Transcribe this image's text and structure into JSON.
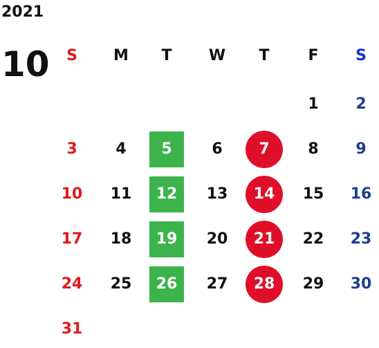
{
  "year": "2021",
  "month": "10",
  "colors": {
    "sunday": "#e0191d",
    "saturday": "#1f3e8c",
    "weekday": "#111111",
    "green_highlight": "#3cb44b",
    "red_highlight": "#e00f29",
    "highlight_text": "#ffffff"
  },
  "weekdays": [
    "S",
    "M",
    "T",
    "W",
    "T",
    "F",
    "S"
  ],
  "weeks": [
    [
      "",
      "",
      "",
      "",
      "",
      "1",
      "2"
    ],
    [
      "3",
      "4",
      "5",
      "6",
      "7",
      "8",
      "9"
    ],
    [
      "10",
      "11",
      "12",
      "13",
      "14",
      "15",
      "16"
    ],
    [
      "17",
      "18",
      "19",
      "20",
      "21",
      "22",
      "23"
    ],
    [
      "24",
      "25",
      "26",
      "27",
      "28",
      "29",
      "30"
    ],
    [
      "31",
      "",
      "",
      "",
      "",
      "",
      ""
    ]
  ],
  "highlights": {
    "green_square": [
      "5",
      "12",
      "19",
      "26"
    ],
    "red_circle": [
      "7",
      "14",
      "21",
      "28"
    ]
  }
}
